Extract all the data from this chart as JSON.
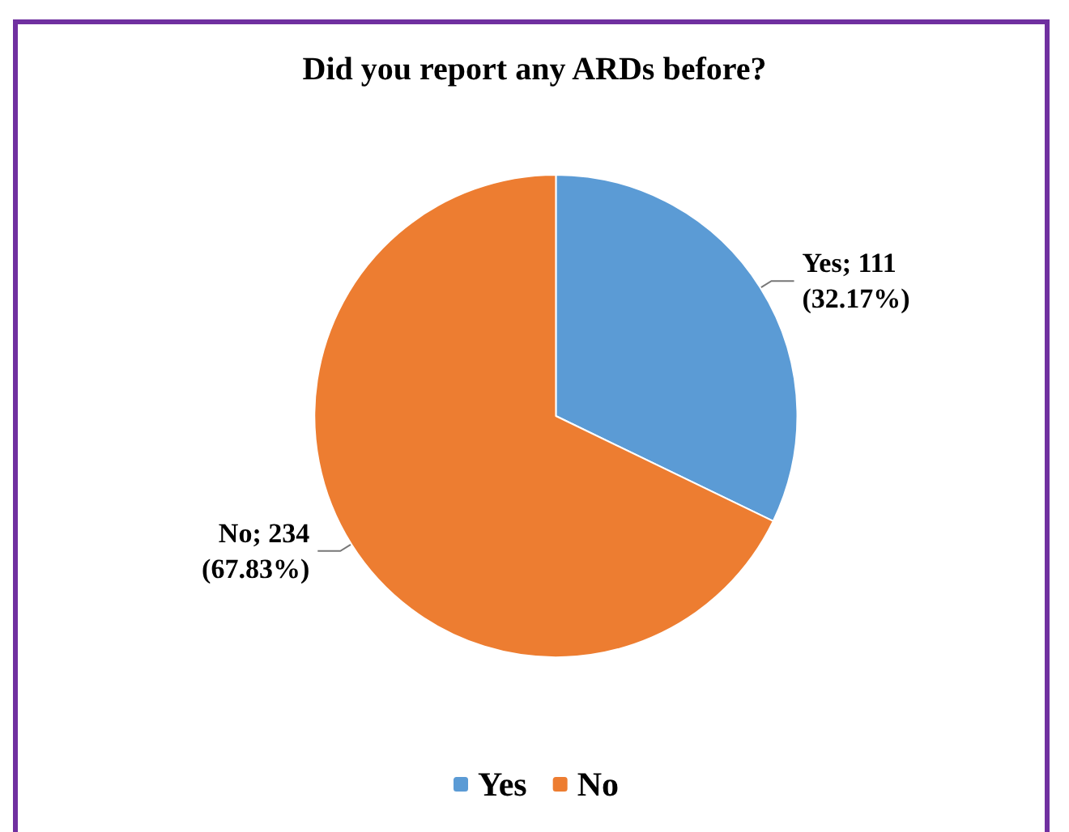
{
  "chart_data": {
    "type": "pie",
    "title": "Did you report any ARDs before?",
    "categories": [
      "Yes",
      "No"
    ],
    "values": [
      111,
      234
    ],
    "colors": [
      "#5b9bd5",
      "#ed7d31"
    ],
    "value_labels": [
      "Yes; 111\n(32.17%)",
      "No; 234\n(67.83%)"
    ],
    "legend": "bottom"
  }
}
